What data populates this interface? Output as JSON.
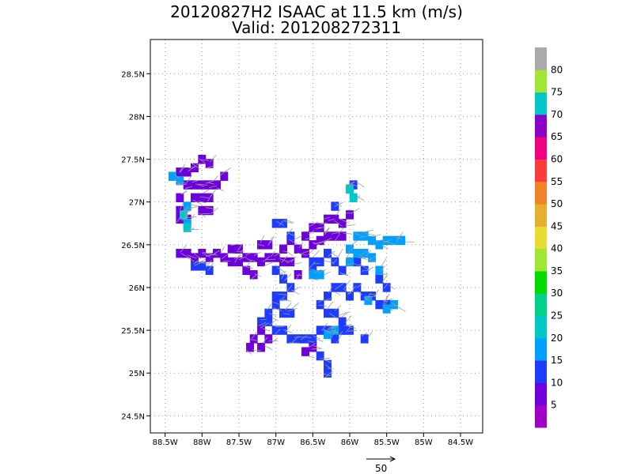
{
  "title": "20120827H2 ISAAC at 11.5 km (m/s)",
  "subtitle": "Valid: 201208272311",
  "chart_data": {
    "type": "heatmap",
    "x_ticks": [
      "88.5W",
      "88W",
      "87.5W",
      "87W",
      "86.5W",
      "86W",
      "85.5W",
      "85W",
      "84.5W"
    ],
    "x_values": [
      -88.5,
      -88,
      -87.5,
      -87,
      -86.5,
      -86,
      -85.5,
      -85,
      -84.5
    ],
    "y_ticks": [
      "24.5N",
      "25N",
      "25.5N",
      "26N",
      "26.5N",
      "27N",
      "27.5N",
      "28N",
      "28.5N"
    ],
    "y_values": [
      24.5,
      25,
      25.5,
      26,
      26.5,
      27,
      27.5,
      28,
      28.5
    ],
    "xlim": [
      -88.7,
      -84.2
    ],
    "ylim": [
      24.3,
      28.9
    ],
    "grid": true,
    "colorbar": {
      "labels": [
        "5",
        "10",
        "15",
        "20",
        "25",
        "30",
        "35",
        "40",
        "45",
        "50",
        "55",
        "60",
        "65",
        "70",
        "75",
        "80"
      ],
      "values": [
        5,
        10,
        15,
        20,
        25,
        30,
        35,
        40,
        45,
        50,
        55,
        60,
        65,
        70,
        75,
        80
      ],
      "colors": [
        "#a000c8",
        "#6e00dc",
        "#1e3cff",
        "#00a0ff",
        "#00c8c8",
        "#00d28c",
        "#00dc00",
        "#a0e632",
        "#e6dc32",
        "#e6af2d",
        "#f08228",
        "#fa3c3c",
        "#f00082",
        "#8c00c8",
        "#00c8c8",
        "#a0e632",
        "#aaaaaa"
      ]
    },
    "regions": [
      {
        "cells": [
          [
            -88.3,
            27.35
          ],
          [
            -88.2,
            27.35
          ],
          [
            -88.1,
            27.4
          ],
          [
            -88.0,
            27.5
          ],
          [
            -87.9,
            27.45
          ],
          [
            -88.2,
            27.2
          ],
          [
            -88.1,
            27.2
          ],
          [
            -88.0,
            27.2
          ],
          [
            -87.9,
            27.2
          ],
          [
            -88.1,
            27.05
          ],
          [
            -88.0,
            27.05
          ],
          [
            -87.9,
            27.05
          ],
          [
            -88.0,
            26.9
          ],
          [
            -87.9,
            26.9
          ],
          [
            -87.8,
            27.2
          ],
          [
            -87.7,
            27.3
          ],
          [
            -88.3,
            27.05
          ],
          [
            -88.3,
            26.9
          ],
          [
            -88.3,
            26.8
          ],
          [
            -88.2,
            26.8
          ]
        ],
        "value": 8
      },
      {
        "cells": [
          [
            -88.3,
            26.4
          ],
          [
            -88.2,
            26.4
          ],
          [
            -88.1,
            26.35
          ],
          [
            -88.0,
            26.4
          ],
          [
            -87.9,
            26.35
          ],
          [
            -87.8,
            26.4
          ],
          [
            -87.7,
            26.35
          ],
          [
            -87.6,
            26.3
          ],
          [
            -87.5,
            26.3
          ],
          [
            -87.4,
            26.35
          ],
          [
            -87.3,
            26.35
          ],
          [
            -87.2,
            26.3
          ],
          [
            -87.1,
            26.35
          ],
          [
            -87.0,
            26.35
          ],
          [
            -86.9,
            26.3
          ],
          [
            -86.8,
            26.3
          ],
          [
            -86.7,
            26.45
          ],
          [
            -86.6,
            26.6
          ],
          [
            -86.5,
            26.7
          ],
          [
            -86.4,
            26.7
          ],
          [
            -86.3,
            26.8
          ],
          [
            -86.2,
            26.8
          ],
          [
            -86.1,
            26.75
          ],
          [
            -86.0,
            26.85
          ],
          [
            -86.1,
            26.6
          ],
          [
            -86.2,
            26.6
          ],
          [
            -86.3,
            26.6
          ],
          [
            -86.4,
            26.55
          ],
          [
            -86.5,
            26.5
          ],
          [
            -86.6,
            26.4
          ],
          [
            -87.2,
            26.5
          ],
          [
            -87.1,
            26.5
          ],
          [
            -86.9,
            26.45
          ],
          [
            -86.8,
            26.55
          ],
          [
            -87.5,
            26.45
          ],
          [
            -87.6,
            26.45
          ],
          [
            -87.3,
            26.15
          ],
          [
            -87.4,
            26.2
          ],
          [
            -86.7,
            26.15
          ],
          [
            -87.3,
            25.4
          ],
          [
            -87.2,
            25.3
          ],
          [
            -87.1,
            25.4
          ],
          [
            -87.2,
            25.5
          ],
          [
            -86.6,
            25.25
          ],
          [
            -86.5,
            25.3
          ],
          [
            -87.35,
            25.3
          ]
        ],
        "value": 8
      },
      {
        "cells": [
          [
            -88.1,
            26.25
          ],
          [
            -88.0,
            26.25
          ],
          [
            -87.9,
            26.2
          ],
          [
            -87.0,
            26.2
          ],
          [
            -86.9,
            26.1
          ],
          [
            -86.8,
            26.0
          ],
          [
            -86.9,
            25.9
          ],
          [
            -87.0,
            25.9
          ],
          [
            -87.0,
            25.8
          ],
          [
            -86.9,
            25.7
          ],
          [
            -86.8,
            25.7
          ],
          [
            -87.1,
            25.7
          ],
          [
            -87.2,
            25.6
          ],
          [
            -87.1,
            25.6
          ],
          [
            -87.0,
            25.5
          ],
          [
            -86.9,
            25.5
          ],
          [
            -86.8,
            25.4
          ],
          [
            -86.7,
            25.4
          ],
          [
            -86.6,
            25.4
          ],
          [
            -86.5,
            25.4
          ],
          [
            -86.4,
            25.5
          ],
          [
            -86.3,
            25.5
          ],
          [
            -86.2,
            25.4
          ],
          [
            -86.1,
            25.5
          ],
          [
            -86.0,
            25.5
          ],
          [
            -86.4,
            25.8
          ],
          [
            -86.3,
            25.9
          ],
          [
            -86.2,
            26.0
          ],
          [
            -86.1,
            26.0
          ],
          [
            -86.0,
            25.9
          ],
          [
            -85.9,
            26.0
          ],
          [
            -85.8,
            25.9
          ],
          [
            -85.7,
            25.9
          ],
          [
            -86.3,
            25.7
          ],
          [
            -86.2,
            25.7
          ],
          [
            -86.1,
            25.6
          ],
          [
            -86.4,
            25.2
          ],
          [
            -86.3,
            25.1
          ],
          [
            -86.3,
            25.0
          ],
          [
            -86.5,
            26.2
          ],
          [
            -86.4,
            26.3
          ],
          [
            -86.3,
            26.4
          ],
          [
            -86.2,
            26.3
          ],
          [
            -86.1,
            26.2
          ],
          [
            -85.9,
            26.3
          ],
          [
            -85.8,
            26.2
          ],
          [
            -85.6,
            26.1
          ],
          [
            -85.5,
            26.0
          ],
          [
            -85.5,
            25.8
          ],
          [
            -85.6,
            25.8
          ],
          [
            -87.0,
            26.75
          ],
          [
            -86.9,
            26.75
          ],
          [
            -85.95,
            27.2
          ],
          [
            -86.2,
            26.95
          ],
          [
            -86.5,
            26.3
          ],
          [
            -86.8,
            26.6
          ],
          [
            -85.8,
            25.4
          ]
        ],
        "value": 13
      },
      {
        "cells": [
          [
            -88.3,
            27.25
          ],
          [
            -88.4,
            27.3
          ],
          [
            -88.2,
            26.95
          ],
          [
            -88.2,
            26.75
          ],
          [
            -85.9,
            26.6
          ],
          [
            -85.8,
            26.6
          ],
          [
            -85.7,
            26.55
          ],
          [
            -85.6,
            26.5
          ],
          [
            -85.5,
            26.55
          ],
          [
            -85.4,
            26.55
          ],
          [
            -85.3,
            26.55
          ],
          [
            -85.9,
            26.4
          ],
          [
            -85.8,
            26.4
          ],
          [
            -85.7,
            26.35
          ],
          [
            -86.0,
            26.45
          ],
          [
            -86.0,
            26.3
          ],
          [
            -86.4,
            26.15
          ],
          [
            -85.6,
            26.2
          ],
          [
            -85.5,
            25.75
          ],
          [
            -85.4,
            25.8
          ],
          [
            -86.2,
            25.5
          ],
          [
            -86.3,
            25.45
          ],
          [
            -85.75,
            25.85
          ],
          [
            -86.5,
            26.15
          ]
        ],
        "value": 18
      },
      {
        "cells": [
          [
            -88.25,
            26.85
          ],
          [
            -88.2,
            26.7
          ],
          [
            -86.0,
            27.15
          ],
          [
            -85.95,
            27.05
          ]
        ],
        "value": 23
      }
    ],
    "reference_vector": {
      "label": "50",
      "value": 50
    }
  }
}
